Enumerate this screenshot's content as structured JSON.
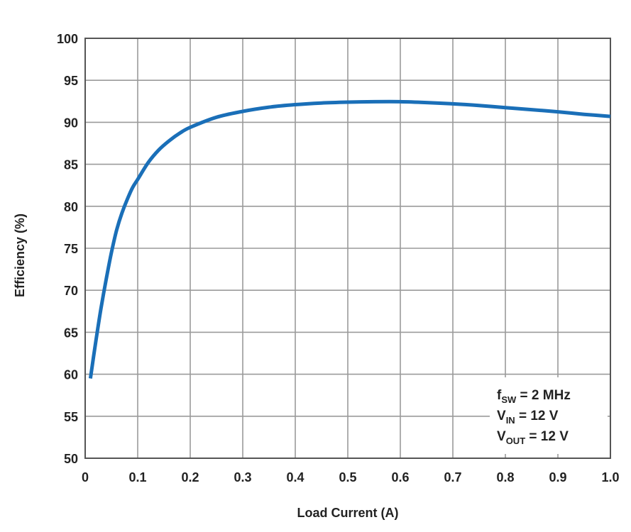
{
  "chart_data": {
    "type": "line",
    "title": "",
    "xlabel": "Load Current (A)",
    "ylabel": "Efficiency (%)",
    "xlim": [
      0,
      1.0
    ],
    "ylim": [
      50,
      100
    ],
    "x_ticks": [
      "0",
      "0.1",
      "0.2",
      "0.3",
      "0.4",
      "0.5",
      "0.6",
      "0.7",
      "0.8",
      "0.9",
      "1.0"
    ],
    "y_ticks": [
      "50",
      "55",
      "60",
      "65",
      "70",
      "75",
      "80",
      "85",
      "90",
      "95",
      "100"
    ],
    "grid": true,
    "line_color": "#1a6fb8",
    "series": [
      {
        "x": [
          0.01,
          0.02,
          0.03,
          0.04,
          0.05,
          0.06,
          0.07,
          0.08,
          0.09,
          0.1,
          0.12,
          0.14,
          0.16,
          0.18,
          0.2,
          0.25,
          0.3,
          0.35,
          0.4,
          0.45,
          0.5,
          0.55,
          0.6,
          0.65,
          0.7,
          0.75,
          0.8,
          0.85,
          0.9,
          0.95,
          1.0
        ],
        "y": [
          59.5,
          63.8,
          67.8,
          71.3,
          74.5,
          77.2,
          79.2,
          80.8,
          82.2,
          83.2,
          85.2,
          86.7,
          87.8,
          88.7,
          89.4,
          90.6,
          91.3,
          91.8,
          92.1,
          92.3,
          92.4,
          92.45,
          92.45,
          92.35,
          92.2,
          92.0,
          91.75,
          91.5,
          91.25,
          90.95,
          90.7
        ]
      }
    ],
    "annotation": {
      "position": "bottom-right",
      "lines": [
        {
          "main": "f",
          "sub": "SW",
          "rest": " = 2 MHz"
        },
        {
          "main": "V",
          "sub": "IN",
          "rest": " = 12 V"
        },
        {
          "main": "V",
          "sub": "OUT",
          "rest": " = 12 V"
        }
      ]
    }
  }
}
